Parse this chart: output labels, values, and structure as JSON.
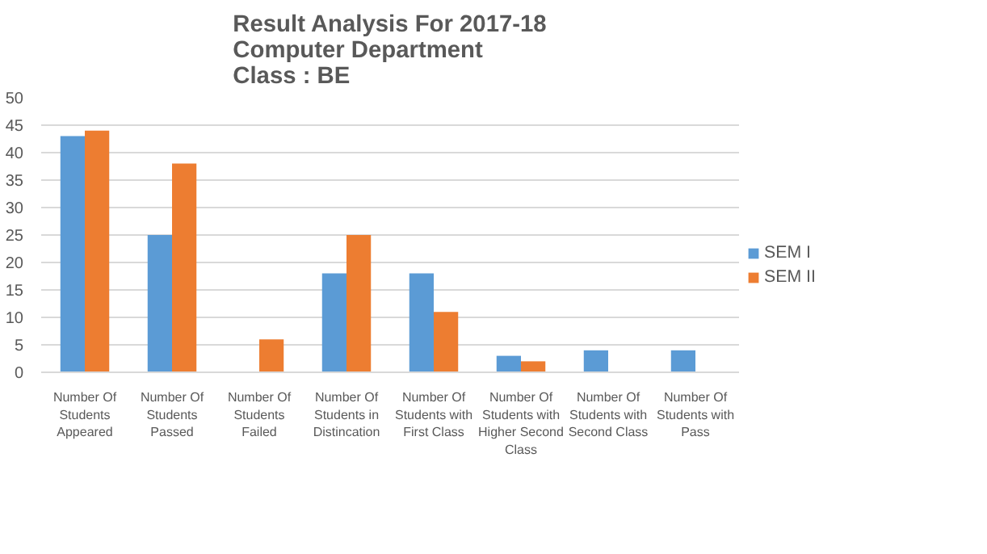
{
  "chart_data": {
    "type": "bar",
    "title": "Result Analysis For 2017-18\nComputer Department\nClass : BE",
    "categories": [
      "Number Of Students Appeared",
      "Number Of Students Passed",
      "Number Of Students Failed",
      "Number Of Students in Distincation",
      "Number Of Students with First Class",
      "Number Of Students with Higher Second Class",
      "Number Of Students with Second Class",
      "Number Of Students with Pass"
    ],
    "series": [
      {
        "name": "SEM I",
        "color": "#5b9bd5",
        "values": [
          43,
          25,
          0,
          18,
          18,
          3,
          4,
          4
        ]
      },
      {
        "name": "SEM II",
        "color": "#ed7d31",
        "values": [
          44,
          38,
          6,
          25,
          11,
          2,
          0,
          0
        ]
      }
    ],
    "ylim": [
      0,
      50
    ],
    "yticks": [
      0,
      5,
      10,
      15,
      20,
      25,
      30,
      35,
      40,
      45,
      50
    ],
    "grid": "y",
    "legend": "right"
  }
}
